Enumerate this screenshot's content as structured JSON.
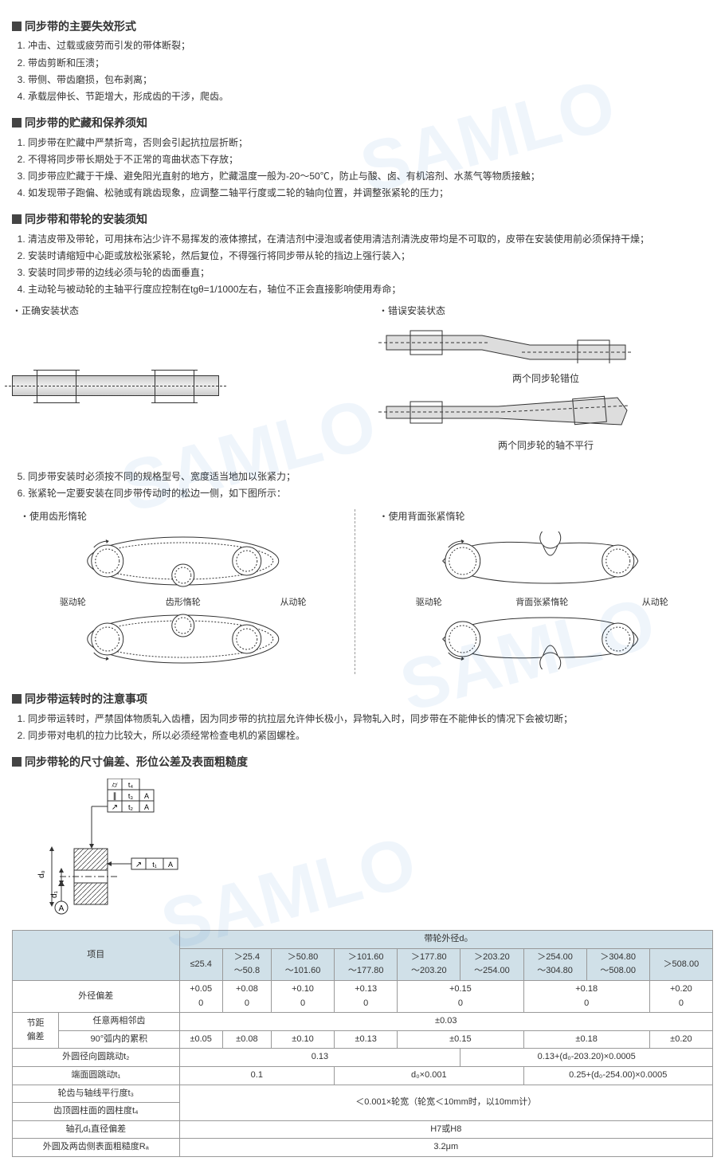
{
  "sections": {
    "failure": {
      "title": "同步带的主要失效形式",
      "items": [
        "冲击、过载或疲劳而引发的带体断裂；",
        "带齿剪断和压溃；",
        "带侧、带齿磨损，包布剥离；",
        "承载层伸长、节距增大，形成齿的干涉，爬齿。"
      ]
    },
    "storage": {
      "title": "同步带的贮藏和保养须知",
      "items": [
        "同步带在贮藏中严禁折弯，否则会引起抗拉层折断；",
        "不得将同步带长期处于不正常的弯曲状态下存放；",
        "同步带应贮藏于干燥、避免阳光直射的地方，贮藏温度一般为-20～50℃，防止与酸、卤、有机溶剂、水蒸气等物质接触；",
        "如发现带子跑偏、松驰或有跳齿现象，应调整二轴平行度或二轮的轴向位置，并调整张紧轮的压力；"
      ]
    },
    "install": {
      "title": "同步带和带轮的安装须知",
      "items_a": [
        "清洁皮带及带轮，可用抹布沾少许不易挥发的液体擦拭，在清洁剂中浸泡或者使用清洁剂清洗皮带均是不可取的，皮带在安装使用前必须保持干燥；",
        "安装时请缩短中心距或放松张紧轮，然后复位，不得强行将同步带从轮的挡边上强行装入；",
        "安装时同步带的边线必须与轮的齿面垂直；",
        "主动轮与被动轮的主轴平行度应控制在tgθ=1/1000左右，轴位不正会直接影响使用寿命；"
      ],
      "diag_correct_label": "・正确安装状态",
      "diag_wrong_label": "・错误安装状态",
      "cap_offset": "两个同步轮错位",
      "cap_nonpara": "两个同步轮的轴不平行",
      "items_b": [
        "同步带安装时必须按不同的规格型号、宽度适当地加以张紧力；",
        "张紧轮一定要安装在同步带传动时的松边一侧，如下图所示："
      ],
      "idler_tooth_label": "・使用齿形惰轮",
      "idler_back_label": "・使用背面张紧惰轮",
      "lbl_drive": "驱动轮",
      "lbl_tooth_idler": "齿形惰轮",
      "lbl_driven": "从动轮",
      "lbl_back_idler": "背面张紧惰轮"
    },
    "running": {
      "title": "同步带运转时的注意事项",
      "items": [
        "同步带运转时，严禁固体物质轧入齿槽，因为同步带的抗拉层允许伸长极小，异物轧入时，同步带在不能伸长的情况下会被切断；",
        "同步带对电机的拉力比较大，所以必须经常检查电机的紧固螺栓。"
      ]
    },
    "tolerance": {
      "title": "同步带轮的尺寸偏差、形位公差及表面粗糙度"
    }
  },
  "table": {
    "hdr_item": "项目",
    "hdr_dia": "带轮外径d₀",
    "ranges": [
      "≤25.4",
      "＞25.4\n～50.8",
      "＞50.80\n～101.60",
      "＞101.60\n～177.80",
      "＞177.80\n～203.20",
      "＞203.20\n～254.00",
      "＞254.00\n～304.80",
      "＞304.80\n～508.00",
      "＞508.00"
    ],
    "row_od": "外径偏差",
    "od_vals": [
      "+0.05\n0",
      "+0.08\n0",
      "+0.10\n0",
      "+0.13\n0",
      "+0.15\n0",
      "+0.18\n0",
      "+0.20\n0"
    ],
    "row_pitch_group": "节距\n偏差",
    "row_pitch_adj": "任意两相邻齿",
    "pitch_adj_val": "±0.03",
    "row_pitch_90": "90°弧内的累积",
    "pitch_90_vals": [
      "±0.05",
      "±0.08",
      "±0.10",
      "±0.13",
      "±0.15",
      "±0.18",
      "±0.20"
    ],
    "row_t2": "外圆径向圆跳动t₂",
    "t2_a": "0.13",
    "t2_b": "0.13+(d₀-203.20)×0.0005",
    "row_t1": "端面圆跳动t₁",
    "t1_a": "0.1",
    "t1_b": "d₀×0.001",
    "t1_c": "0.25+(d₀-254.00)×0.0005",
    "row_t3": "轮齿与轴线平行度t₃",
    "t3t4_val": "＜0.001×轮宽（轮宽＜10mm时，以10mm计）",
    "row_t4": "齿顶圆柱面的圆柱度t₄",
    "row_bore": "轴孔d₁直径偏差",
    "bore_val": "H7或H8",
    "row_ra": "外圆及两齿侧表面粗糙度Rₐ",
    "ra_val": "3.2μm"
  },
  "colors": {
    "table_header_bg": "#d0e0e8",
    "border": "#999999",
    "text": "#333333"
  }
}
